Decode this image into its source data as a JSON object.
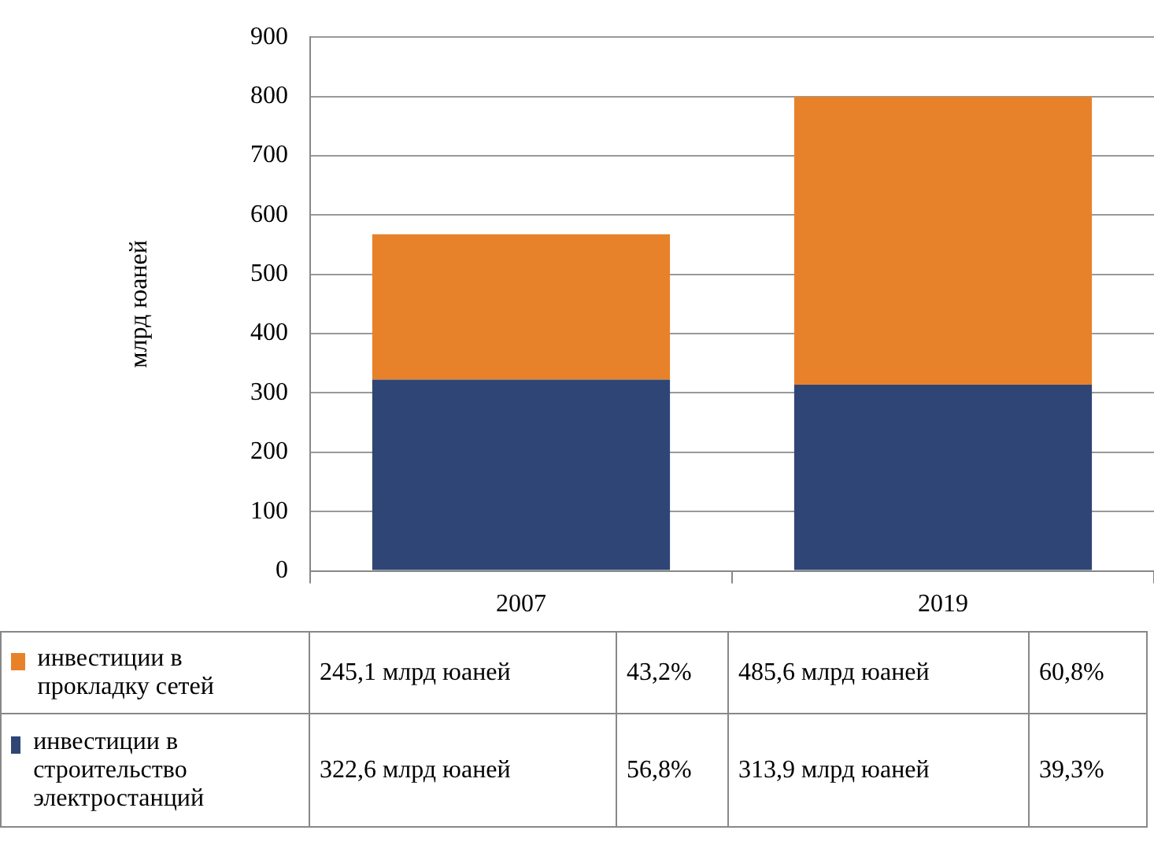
{
  "chart_data": {
    "type": "bar",
    "ylabel": "млрд юаней",
    "categories": [
      "2007",
      "2019"
    ],
    "stacked": true,
    "series": [
      {
        "name": "инвестиции в строительство электростанций",
        "color": "#2f4576",
        "values": [
          322.6,
          313.9
        ],
        "value_labels": [
          "322,6 млрд юаней",
          "313,9 млрд юаней"
        ]
      },
      {
        "name": "инвестиции в прокладку сетей",
        "color": "#e8822a",
        "values": [
          245.1,
          485.6
        ],
        "value_labels": [
          "245,1 млрд юаней",
          "485,6 млрд юаней"
        ]
      }
    ],
    "ylim": [
      0,
      900
    ],
    "yticks": [
      0,
      100,
      200,
      300,
      400,
      500,
      600,
      700,
      800,
      900
    ],
    "grid": "y",
    "legend": "bottom",
    "annotations": [
      "43,2%",
      "60,8%",
      "56,8%",
      "39,3%"
    ]
  }
}
